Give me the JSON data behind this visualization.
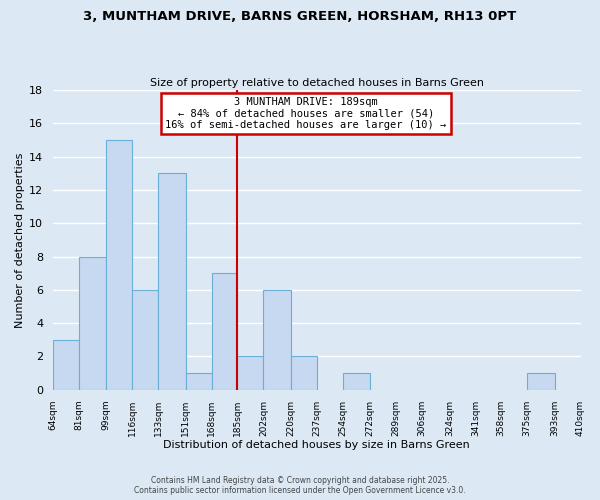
{
  "title": "3, MUNTHAM DRIVE, BARNS GREEN, HORSHAM, RH13 0PT",
  "subtitle": "Size of property relative to detached houses in Barns Green",
  "xlabel": "Distribution of detached houses by size in Barns Green",
  "ylabel": "Number of detached properties",
  "bar_color": "#c6d9f0",
  "bar_edge_color": "#6baed6",
  "background_color": "#dce9f5",
  "grid_color": "#ffffff",
  "bin_edges": [
    64,
    81,
    99,
    116,
    133,
    151,
    168,
    185,
    202,
    220,
    237,
    254,
    272,
    289,
    306,
    324,
    341,
    358,
    375,
    393,
    410
  ],
  "bin_labels": [
    "64sqm",
    "81sqm",
    "99sqm",
    "116sqm",
    "133sqm",
    "151sqm",
    "168sqm",
    "185sqm",
    "202sqm",
    "220sqm",
    "237sqm",
    "254sqm",
    "272sqm",
    "289sqm",
    "306sqm",
    "324sqm",
    "341sqm",
    "358sqm",
    "375sqm",
    "393sqm",
    "410sqm"
  ],
  "counts": [
    3,
    8,
    15,
    6,
    13,
    1,
    7,
    2,
    6,
    2,
    0,
    1,
    0,
    0,
    0,
    0,
    0,
    0,
    1,
    0
  ],
  "vline_x": 185,
  "vline_color": "#cc0000",
  "annotation_title": "3 MUNTHAM DRIVE: 189sqm",
  "annotation_line1": "← 84% of detached houses are smaller (54)",
  "annotation_line2": "16% of semi-detached houses are larger (10) →",
  "annotation_box_color": "#ffffff",
  "annotation_box_edge": "#cc0000",
  "ylim": [
    0,
    18
  ],
  "yticks": [
    0,
    2,
    4,
    6,
    8,
    10,
    12,
    14,
    16,
    18
  ],
  "footer1": "Contains HM Land Registry data © Crown copyright and database right 2025.",
  "footer2": "Contains public sector information licensed under the Open Government Licence v3.0."
}
